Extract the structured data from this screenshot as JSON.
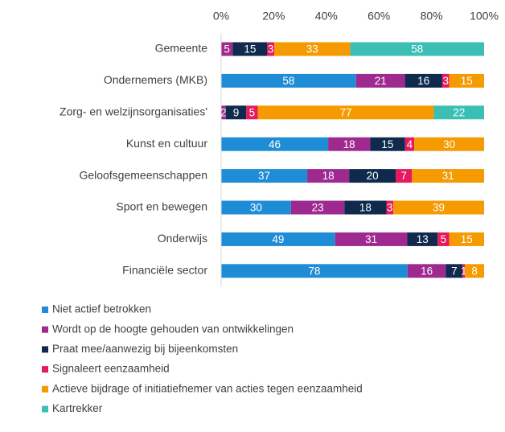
{
  "chart_data": {
    "type": "bar",
    "orientation": "horizontal",
    "stacking": "percent",
    "categories": [
      "Gemeente",
      "Ondernemers (MKB)",
      "Zorg- en welzijnsorganisaties'",
      "Kunst en cultuur",
      "Geloofsgemeenschappen",
      "Sport en bewegen",
      "Onderwijs",
      "Financiële sector"
    ],
    "series": [
      {
        "name": "Niet actief betrokken",
        "color": "#1f8dd6",
        "values": [
          0,
          58,
          0,
          46,
          37,
          30,
          49,
          78
        ]
      },
      {
        "name": "Wordt op de hoogte gehouden van ontwikkelingen",
        "color": "#9e2a8f",
        "values": [
          5,
          21,
          2,
          18,
          18,
          23,
          31,
          16
        ]
      },
      {
        "name": "Praat mee/aanwezig bij bijeenkomsten",
        "color": "#0f2a4d",
        "values": [
          15,
          16,
          9,
          15,
          20,
          18,
          13,
          7
        ]
      },
      {
        "name": "Signaleert eenzaamheid",
        "color": "#e5195e",
        "values": [
          3,
          3,
          5,
          4,
          7,
          3,
          5,
          1
        ]
      },
      {
        "name": "Actieve bijdrage of initiatiefnemer van acties tegen eenzaamheid",
        "color": "#f59a00",
        "values": [
          33,
          15,
          77,
          30,
          31,
          39,
          15,
          8
        ]
      },
      {
        "name": "Kartrekker",
        "color": "#3bbfb5",
        "values": [
          58,
          0,
          22,
          0,
          0,
          0,
          0,
          0
        ]
      }
    ],
    "xlim": [
      0,
      100
    ],
    "xticks": [
      {
        "value": 0,
        "label": "0%"
      },
      {
        "value": 20,
        "label": "20%"
      },
      {
        "value": 40,
        "label": "40%"
      },
      {
        "value": 60,
        "label": "60%"
      },
      {
        "value": 80,
        "label": "80%"
      },
      {
        "value": 100,
        "label": "100%"
      }
    ],
    "legend": "bottom"
  }
}
